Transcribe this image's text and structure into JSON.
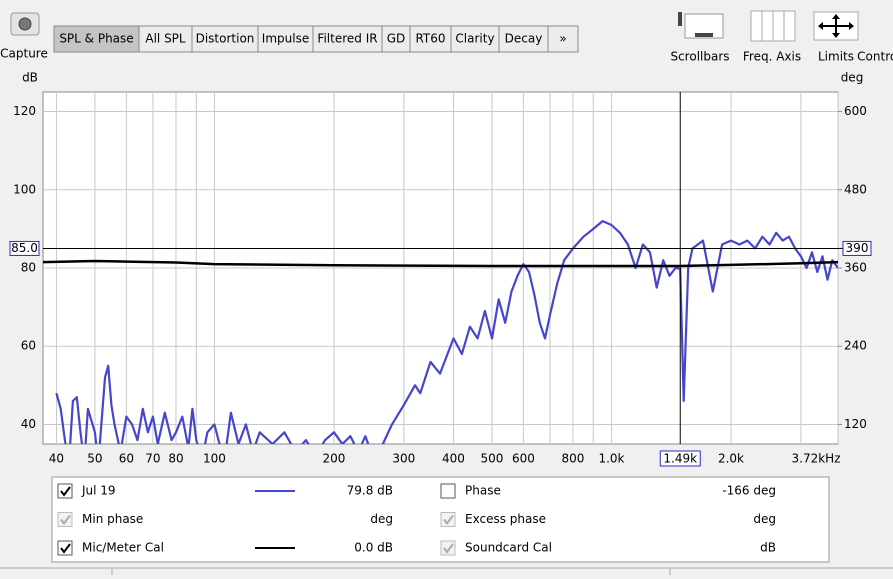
{
  "toolbar": {
    "capture": "Capture",
    "tabs": [
      "SPL & Phase",
      "All SPL",
      "Distortion",
      "Impulse",
      "Filtered IR",
      "GD",
      "RT60",
      "Clarity",
      "Decay",
      "»"
    ],
    "selected": 0,
    "tools": [
      "Scrollbars",
      "Freq. Axis",
      "Limits",
      "Controls"
    ]
  },
  "chart_data": {
    "type": "line",
    "y_label": "dB",
    "y2_label": "deg",
    "xlim": [
      37,
      3720
    ],
    "log_x": true,
    "grid": true,
    "xticks": [
      40,
      50,
      60,
      70,
      80,
      100,
      200,
      300,
      400,
      500,
      600,
      800,
      {
        "value": 1000,
        "label": "1.0k"
      },
      {
        "value": 2000,
        "label": "2.0k"
      },
      {
        "value": 3720,
        "label": "3.72kHz"
      }
    ],
    "xminor": [
      90,
      700,
      900,
      3000
    ],
    "ylim": [
      35,
      125
    ],
    "yticks": [
      40,
      60,
      80,
      100,
      120
    ],
    "y2lim": [
      90,
      630
    ],
    "y2ticks": [
      120,
      240,
      360,
      480,
      600
    ],
    "cursor": {
      "x": {
        "value": 1490,
        "label": "1.49k"
      },
      "y": {
        "value": 85,
        "label": "85.0"
      },
      "y2": 390
    },
    "series": [
      {
        "name": "Jul 19",
        "color": "#4646cc",
        "x": [
          40,
          41,
          42,
          43,
          44,
          45,
          46,
          47,
          48,
          50,
          51,
          53,
          54,
          55,
          56,
          58,
          60,
          62,
          64,
          66,
          68,
          70,
          72,
          75,
          78,
          80,
          83,
          86,
          88,
          90,
          93,
          96,
          100,
          103,
          107,
          110,
          115,
          120,
          125,
          130,
          140,
          150,
          160,
          170,
          180,
          190,
          200,
          210,
          220,
          230,
          240,
          250,
          260,
          280,
          300,
          320,
          330,
          350,
          370,
          400,
          420,
          440,
          460,
          480,
          500,
          520,
          540,
          560,
          580,
          600,
          620,
          640,
          660,
          680,
          700,
          730,
          760,
          800,
          850,
          900,
          950,
          1000,
          1050,
          1100,
          1150,
          1200,
          1250,
          1300,
          1350,
          1400,
          1450,
          1490,
          1520,
          1560,
          1600,
          1700,
          1800,
          1900,
          2000,
          2100,
          2200,
          2300,
          2400,
          2500,
          2600,
          2700,
          2800,
          2900,
          3000,
          3100,
          3200,
          3300,
          3400,
          3500,
          3600,
          3720
        ],
        "values": [
          48,
          44,
          36,
          30,
          46,
          47,
          38,
          30,
          44,
          38,
          30,
          52,
          55,
          45,
          40,
          33,
          42,
          40,
          36,
          44,
          38,
          42,
          35,
          43,
          36,
          38,
          42,
          34,
          44,
          36,
          31,
          38,
          40,
          35,
          34,
          43,
          35,
          40,
          33,
          38,
          35,
          38,
          33,
          36,
          32,
          36,
          38,
          35,
          37,
          33,
          37,
          32,
          33,
          40,
          45,
          50,
          48,
          56,
          53,
          62,
          58,
          65,
          62,
          69,
          62,
          72,
          66,
          74,
          78,
          81,
          79,
          73,
          66,
          62,
          68,
          76,
          82,
          85,
          88,
          90,
          92,
          91,
          89,
          86,
          80,
          86,
          84,
          75,
          82,
          78,
          80,
          79.8,
          46,
          80,
          85,
          87,
          74,
          86,
          87,
          86,
          87,
          85,
          88,
          86,
          89,
          87,
          88,
          85,
          83,
          80,
          84,
          79,
          83,
          77,
          82,
          80
        ]
      },
      {
        "name": "Mic/Meter Cal",
        "color": "#000000",
        "x": [
          37,
          50,
          80,
          100,
          200,
          500,
          1000,
          1490,
          2000,
          3000,
          3720
        ],
        "values": [
          81.5,
          81.8,
          81.4,
          81,
          80.7,
          80.5,
          80.5,
          80.5,
          80.8,
          81.2,
          81.5
        ]
      }
    ]
  },
  "legend": {
    "items": [
      {
        "name": "Jul 19",
        "value": "79.8 dB",
        "checked": true,
        "enabled": true,
        "color": "#4646cc",
        "sample": true
      },
      {
        "name": "Min phase",
        "value": "deg",
        "checked": true,
        "enabled": false,
        "color": "#999999",
        "sample": false
      },
      {
        "name": "Mic/Meter Cal",
        "value": "0.0 dB",
        "checked": true,
        "enabled": true,
        "color": "#000000",
        "sample": true
      },
      {
        "name": "Phase",
        "value": "-166 deg",
        "checked": false,
        "enabled": true,
        "color": "#a02828",
        "sample": false
      },
      {
        "name": "Excess phase",
        "value": "deg",
        "checked": true,
        "enabled": false,
        "color": "#999999",
        "sample": false
      },
      {
        "name": "Soundcard Cal",
        "value": "dB",
        "checked": true,
        "enabled": false,
        "color": "#999999",
        "sample": false
      }
    ]
  }
}
